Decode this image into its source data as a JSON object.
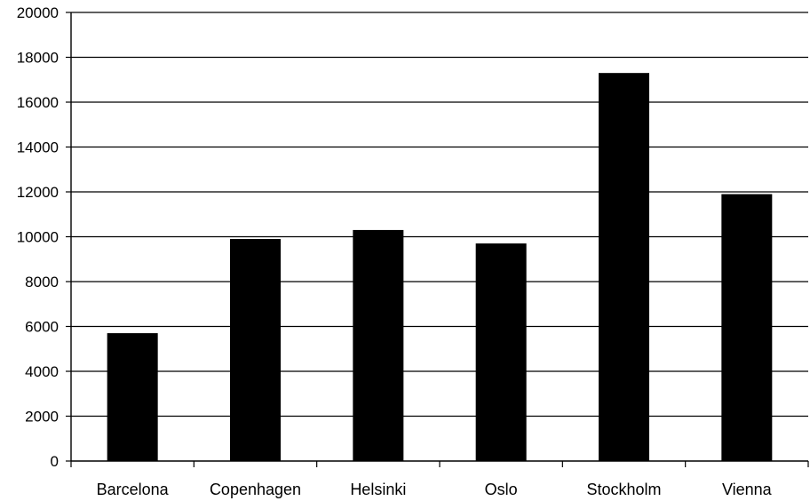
{
  "chart_data": {
    "type": "bar",
    "title": "",
    "xlabel": "",
    "ylabel": "",
    "categories": [
      "Barcelona",
      "Copenhagen",
      "Helsinki",
      "Oslo",
      "Stockholm",
      "Vienna"
    ],
    "values": [
      5700,
      9900,
      10300,
      9700,
      17300,
      11900
    ],
    "ylim": [
      0,
      20000
    ],
    "yticks": [
      "0",
      "2000",
      "4000",
      "6000",
      "8000",
      "10000",
      "12000",
      "14000",
      "16000",
      "18000",
      "20000"
    ],
    "bar_color": "#000000",
    "grid": true,
    "legend": "none"
  }
}
